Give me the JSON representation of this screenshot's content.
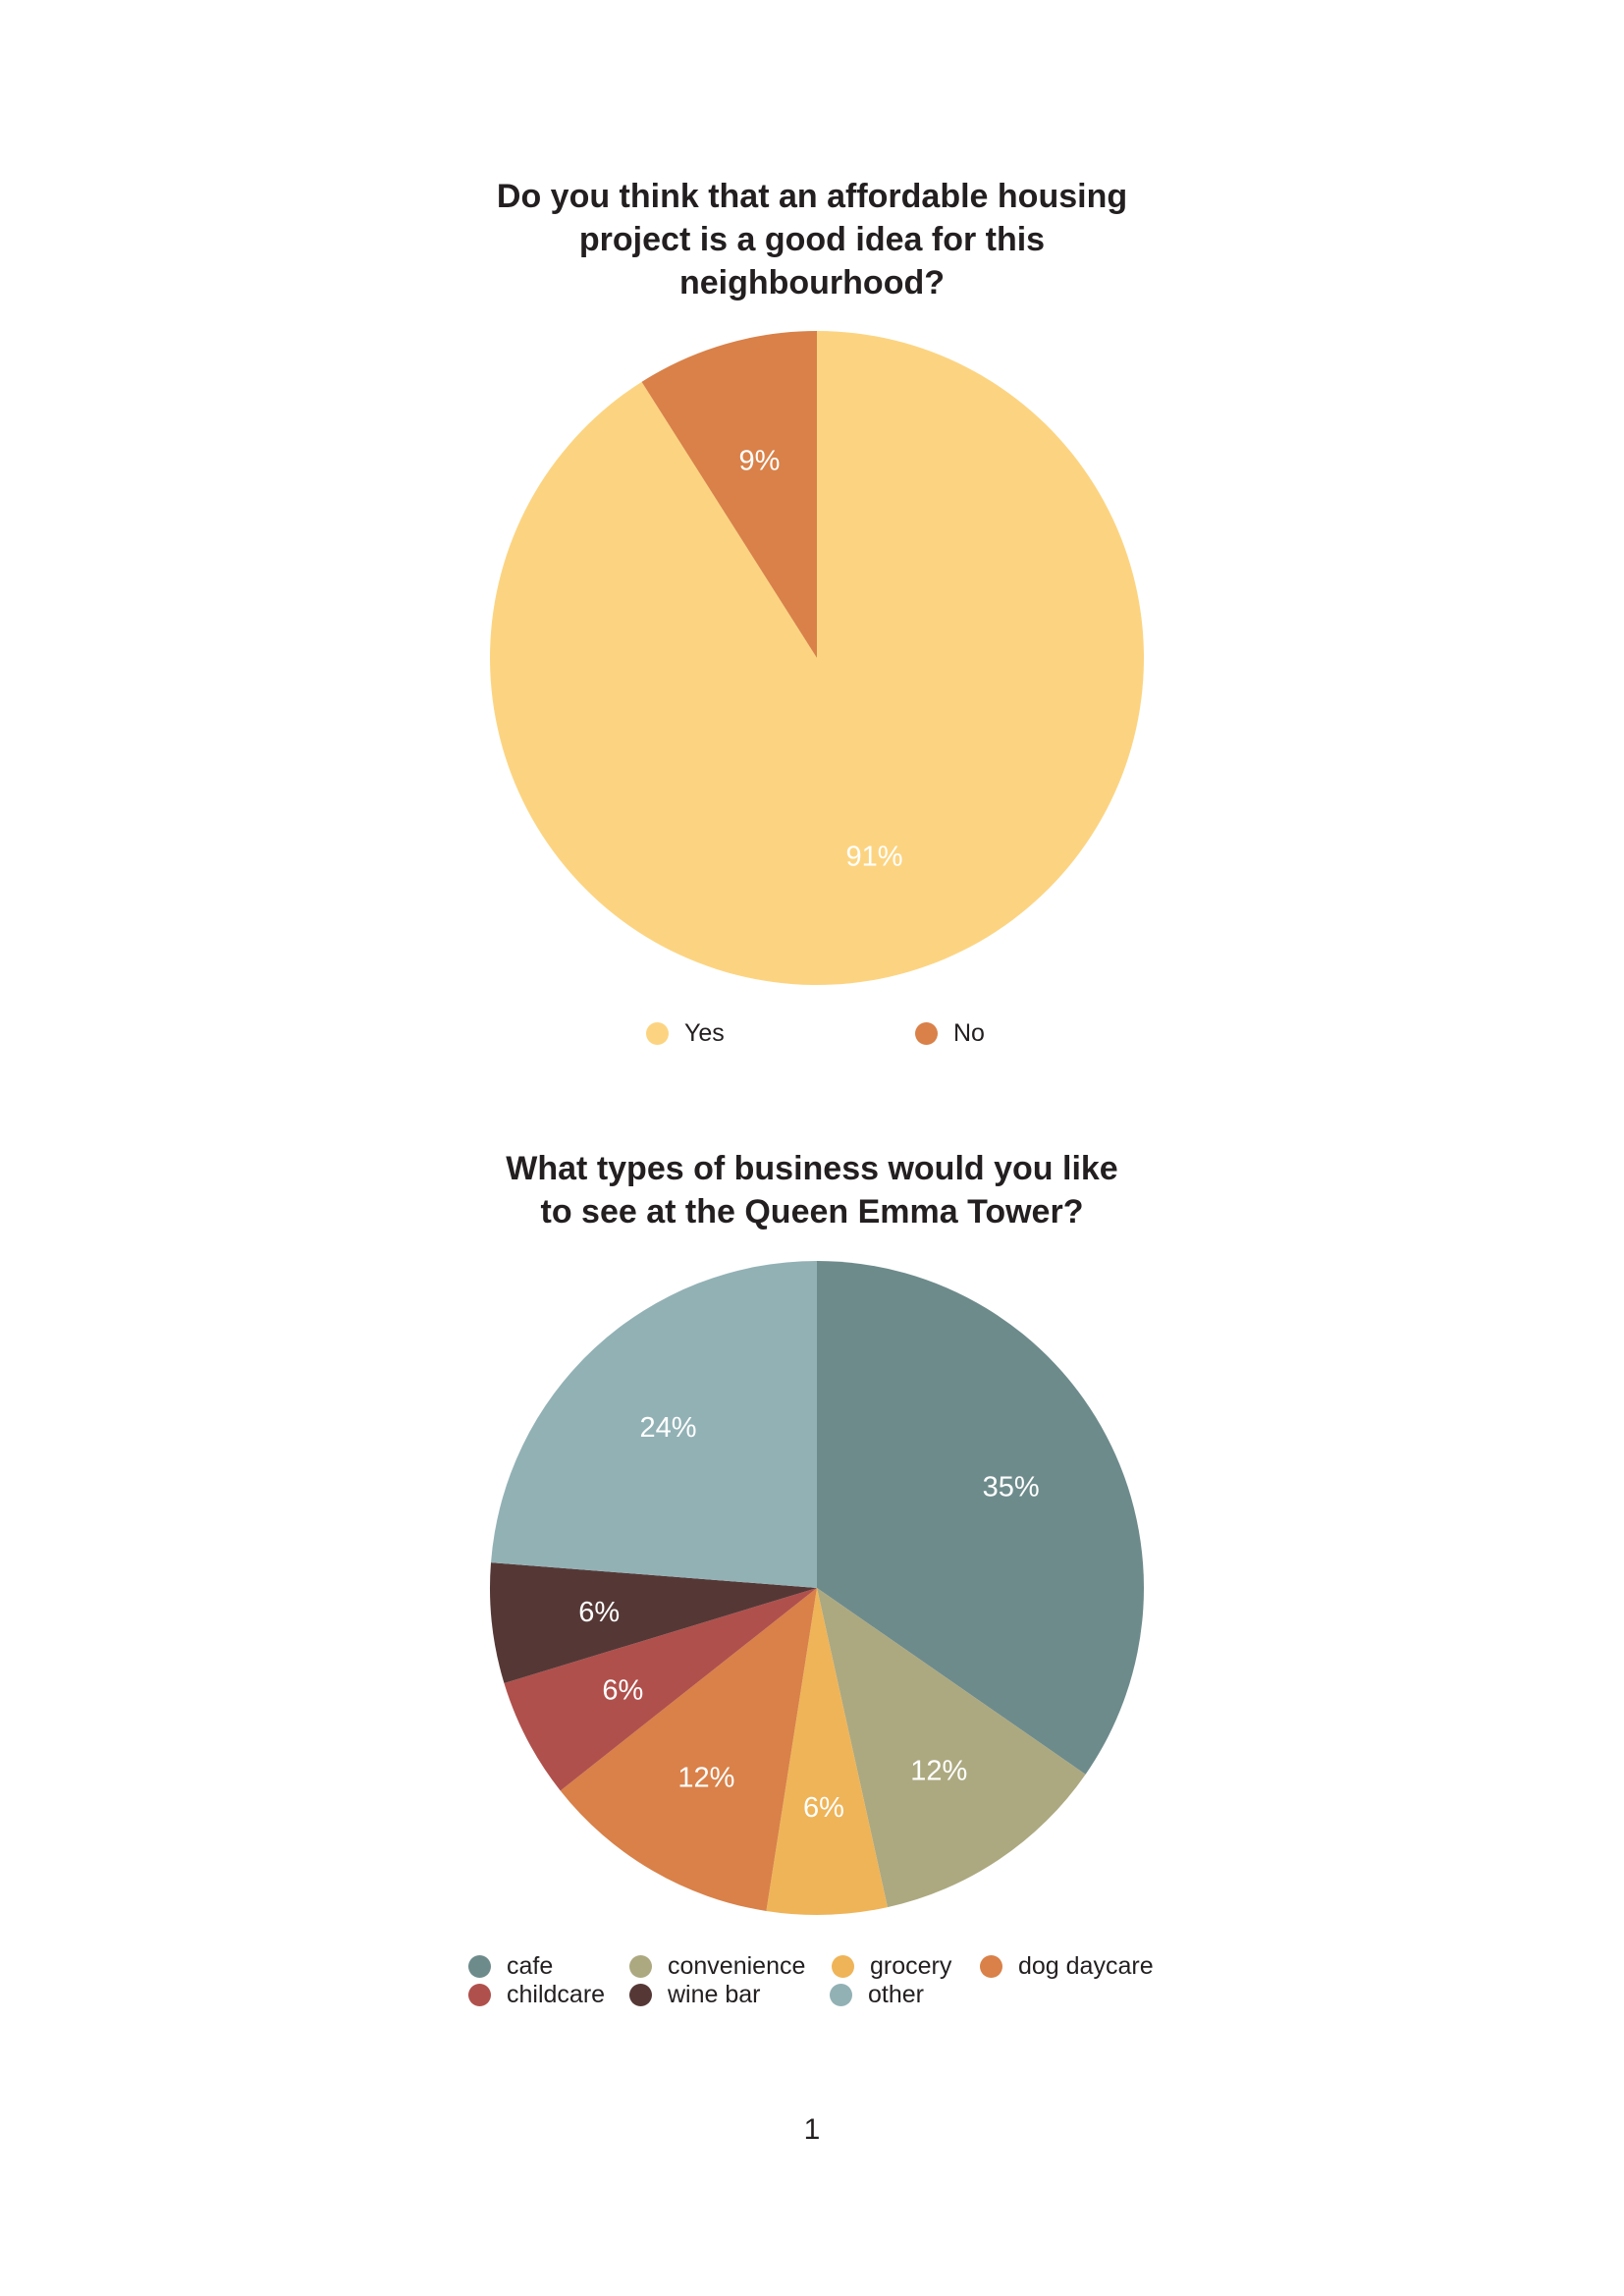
{
  "page_number": "1",
  "chart_data": [
    {
      "type": "pie",
      "title_lines": [
        "Do you think that an affordable housing",
        "project is a good idea for this",
        "neighbourhood?"
      ],
      "slices": [
        {
          "name": "Yes",
          "value": 91,
          "label": "91%",
          "color": "#fcd481"
        },
        {
          "name": "No",
          "value": 9,
          "label": "9%",
          "color": "#d98149"
        }
      ],
      "legend_placement": "bottom"
    },
    {
      "type": "pie",
      "title_lines": [
        "What types of business would you like",
        "to see at the Queen Emma Tower?"
      ],
      "slices": [
        {
          "name": "cafe",
          "value": 35,
          "label": "35%",
          "color": "#6e8b8c"
        },
        {
          "name": "convenience",
          "value": 12,
          "label": "12%",
          "color": "#aca980"
        },
        {
          "name": "grocery",
          "value": 6,
          "label": "6%",
          "color": "#efb458"
        },
        {
          "name": "dog daycare",
          "value": 12,
          "label": "12%",
          "color": "#d98149"
        },
        {
          "name": "childcare",
          "value": 6,
          "label": "6%",
          "color": "#b0504c"
        },
        {
          "name": "wine bar",
          "value": 6,
          "label": "6%",
          "color": "#553836"
        },
        {
          "name": "other",
          "value": 24,
          "label": "24%",
          "color": "#92b1b5"
        }
      ],
      "legend_placement": "bottom"
    }
  ]
}
